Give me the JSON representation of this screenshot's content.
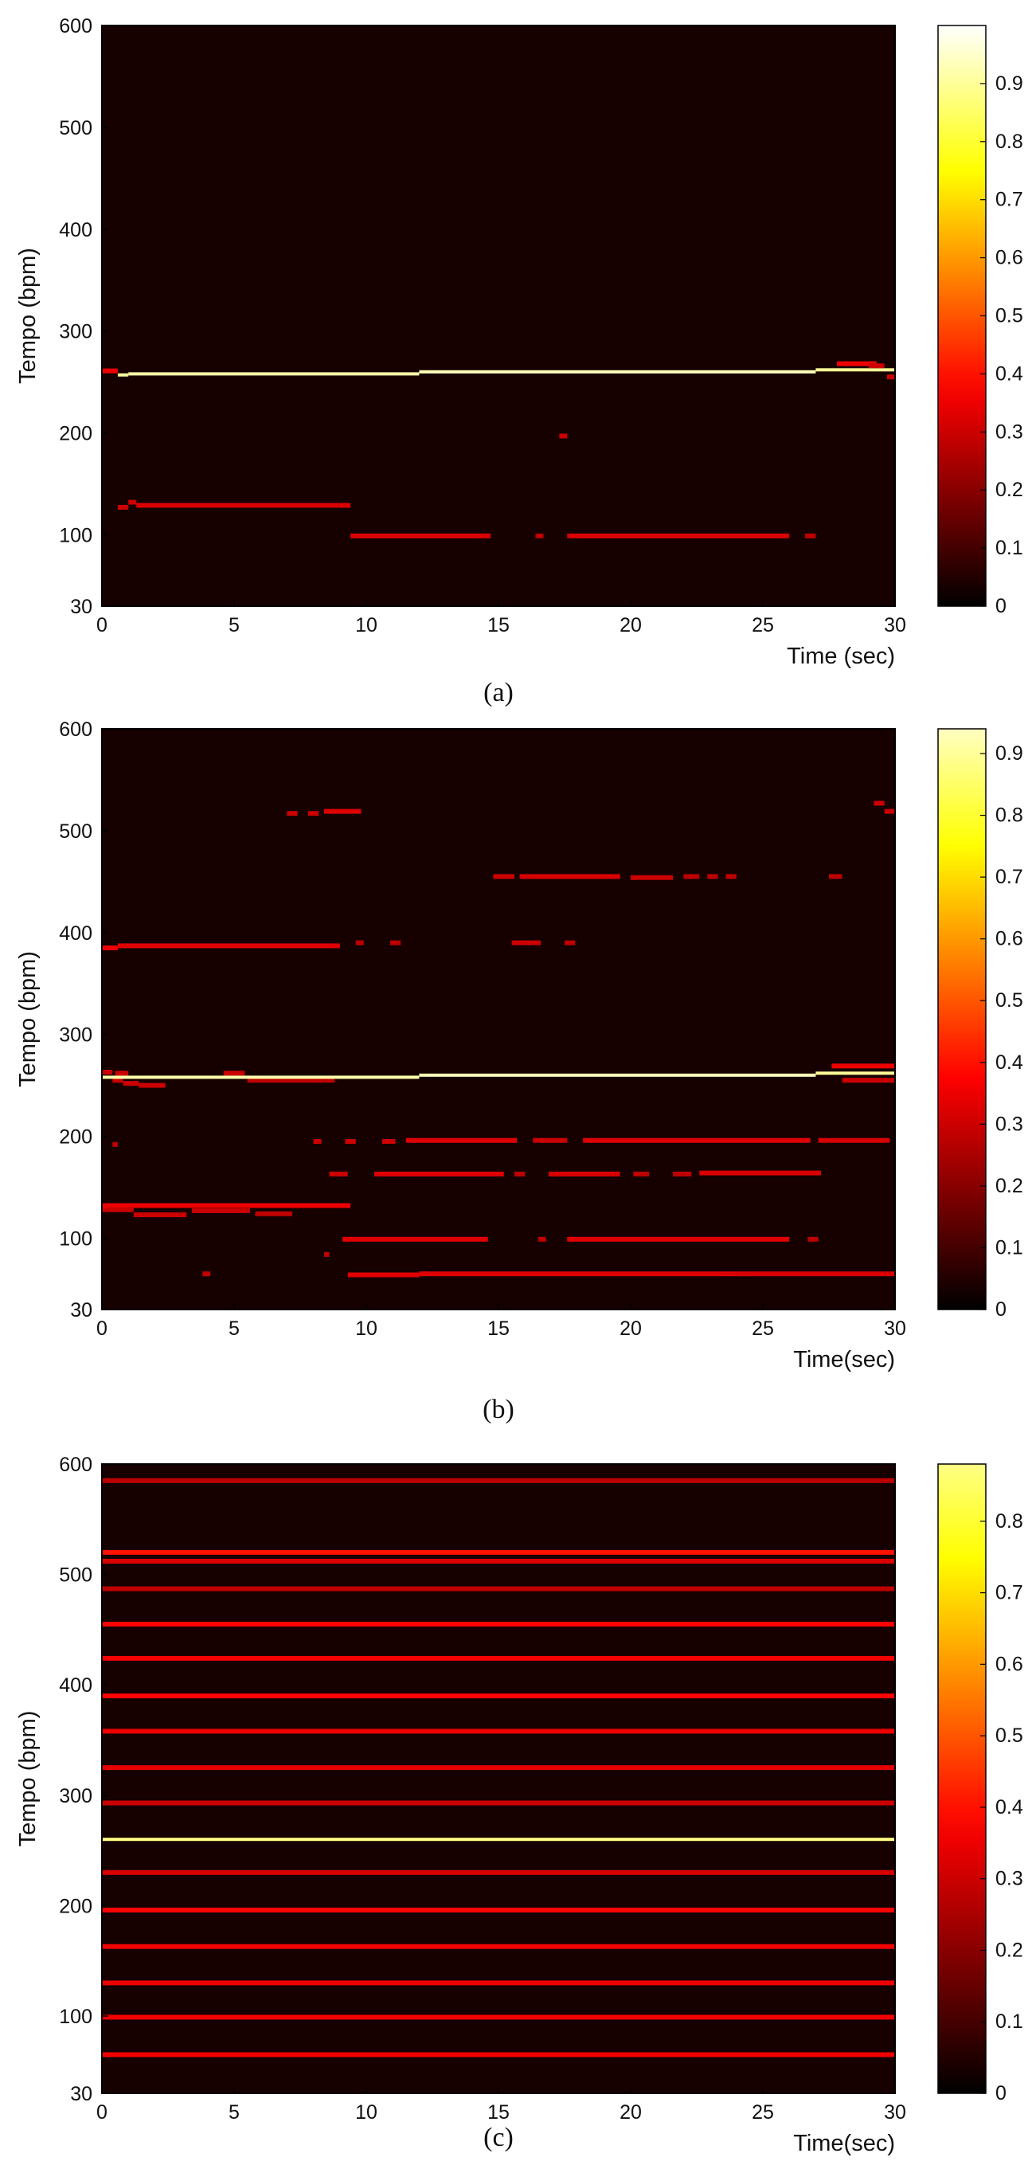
{
  "figure": {
    "panels": [
      {
        "caption": "(a)",
        "xlabel": "Time (sec)",
        "ylabel": "Tempo (bpm)"
      },
      {
        "caption": "(b)",
        "xlabel": "Time(sec)",
        "ylabel": "Tempo (bpm)"
      },
      {
        "caption": "(c)",
        "xlabel": "Time(sec)",
        "ylabel": "Tempo (bpm)"
      }
    ]
  },
  "chart_data": [
    {
      "type": "heatmap",
      "caption": "(a)",
      "title": "",
      "xlabel": "Time (sec)",
      "ylabel": "Tempo (bpm)",
      "xlim": [
        0,
        30
      ],
      "ylim": [
        30,
        600
      ],
      "xticks": [
        0,
        5,
        10,
        15,
        20,
        25,
        30
      ],
      "yticks": [
        30,
        100,
        200,
        300,
        400,
        500,
        600
      ],
      "colorbar": {
        "colormap": "hot",
        "min": 0,
        "max": 1.0,
        "ticks": [
          0,
          0.1,
          0.2,
          0.3,
          0.4,
          0.5,
          0.6,
          0.7,
          0.8,
          0.9
        ]
      },
      "background": "#160000",
      "tracks": [
        {
          "t0": 0,
          "t1": 0.6,
          "bpm": 261,
          "value": 0.35
        },
        {
          "t0": 0.6,
          "t1": 1.0,
          "bpm": 257,
          "value": 0.9
        },
        {
          "t0": 1.0,
          "t1": 12,
          "bpm": 258,
          "value": 0.92
        },
        {
          "t0": 12,
          "t1": 27,
          "bpm": 260,
          "value": 0.93
        },
        {
          "t0": 27,
          "t1": 30,
          "bpm": 262,
          "value": 0.9
        },
        {
          "t0": 27.8,
          "t1": 29.3,
          "bpm": 268,
          "value": 0.35
        },
        {
          "t0": 29.0,
          "t1": 29.6,
          "bpm": 266,
          "value": 0.3
        },
        {
          "t0": 29.7,
          "t1": 30,
          "bpm": 255,
          "value": 0.3
        },
        {
          "t0": 17.3,
          "t1": 17.6,
          "bpm": 197,
          "value": 0.3
        },
        {
          "t0": 0.6,
          "t1": 1.0,
          "bpm": 127,
          "value": 0.3
        },
        {
          "t0": 1.0,
          "t1": 1.3,
          "bpm": 132,
          "value": 0.3
        },
        {
          "t0": 1.3,
          "t1": 9.4,
          "bpm": 129,
          "value": 0.32
        },
        {
          "t0": 9.4,
          "t1": 14.7,
          "bpm": 99,
          "value": 0.32
        },
        {
          "t0": 16.4,
          "t1": 16.7,
          "bpm": 99,
          "value": 0.28
        },
        {
          "t0": 17.6,
          "t1": 26.0,
          "bpm": 99,
          "value": 0.32
        },
        {
          "t0": 26.6,
          "t1": 27.0,
          "bpm": 99,
          "value": 0.28
        }
      ]
    },
    {
      "type": "heatmap",
      "caption": "(b)",
      "title": "",
      "xlabel": "Time(sec)",
      "ylabel": "Tempo (bpm)",
      "xlim": [
        0,
        30
      ],
      "ylim": [
        30,
        600
      ],
      "xticks": [
        0,
        5,
        10,
        15,
        20,
        25,
        30
      ],
      "yticks": [
        30,
        100,
        200,
        300,
        400,
        500,
        600
      ],
      "colorbar": {
        "colormap": "hot",
        "min": 0,
        "max": 0.94,
        "ticks": [
          0,
          0.1,
          0.2,
          0.3,
          0.4,
          0.5,
          0.6,
          0.7,
          0.8,
          0.9
        ]
      },
      "background": "#160000",
      "tracks": [
        {
          "t0": 7.0,
          "t1": 7.4,
          "bpm": 517,
          "value": 0.3
        },
        {
          "t0": 7.8,
          "t1": 8.2,
          "bpm": 517,
          "value": 0.3
        },
        {
          "t0": 8.4,
          "t1": 9.8,
          "bpm": 519,
          "value": 0.33
        },
        {
          "t0": 29.2,
          "t1": 29.6,
          "bpm": 527,
          "value": 0.3
        },
        {
          "t0": 29.6,
          "t1": 30,
          "bpm": 519,
          "value": 0.3
        },
        {
          "t0": 14.8,
          "t1": 15.6,
          "bpm": 455,
          "value": 0.3
        },
        {
          "t0": 15.8,
          "t1": 19.6,
          "bpm": 455,
          "value": 0.32
        },
        {
          "t0": 20.0,
          "t1": 21.6,
          "bpm": 454,
          "value": 0.3
        },
        {
          "t0": 22.0,
          "t1": 22.6,
          "bpm": 455,
          "value": 0.28
        },
        {
          "t0": 22.9,
          "t1": 23.3,
          "bpm": 455,
          "value": 0.28
        },
        {
          "t0": 23.6,
          "t1": 24.0,
          "bpm": 455,
          "value": 0.28
        },
        {
          "t0": 27.5,
          "t1": 28.0,
          "bpm": 455,
          "value": 0.28
        },
        {
          "t0": 0,
          "t1": 0.6,
          "bpm": 385,
          "value": 0.35
        },
        {
          "t0": 0.6,
          "t1": 9.0,
          "bpm": 387,
          "value": 0.33
        },
        {
          "t0": 9.6,
          "t1": 9.9,
          "bpm": 390,
          "value": 0.28
        },
        {
          "t0": 10.9,
          "t1": 11.3,
          "bpm": 390,
          "value": 0.28
        },
        {
          "t0": 15.5,
          "t1": 16.6,
          "bpm": 390,
          "value": 0.3
        },
        {
          "t0": 17.5,
          "t1": 17.9,
          "bpm": 390,
          "value": 0.28
        },
        {
          "t0": 0,
          "t1": 0.4,
          "bpm": 263,
          "value": 0.3
        },
        {
          "t0": 0.5,
          "t1": 1.0,
          "bpm": 262,
          "value": 0.3
        },
        {
          "t0": 0.4,
          "t1": 0.8,
          "bpm": 255,
          "value": 0.3
        },
        {
          "t0": 0.8,
          "t1": 1.4,
          "bpm": 252,
          "value": 0.3
        },
        {
          "t0": 1.4,
          "t1": 2.4,
          "bpm": 250,
          "value": 0.3
        },
        {
          "t0": 4.6,
          "t1": 5.4,
          "bpm": 262,
          "value": 0.3
        },
        {
          "t0": 5.5,
          "t1": 8.8,
          "bpm": 255,
          "value": 0.28
        },
        {
          "t0": 0,
          "t1": 12,
          "bpm": 258,
          "value": 0.92
        },
        {
          "t0": 12,
          "t1": 27,
          "bpm": 260,
          "value": 0.93
        },
        {
          "t0": 27,
          "t1": 30,
          "bpm": 262,
          "value": 0.9
        },
        {
          "t0": 27.6,
          "t1": 30,
          "bpm": 269,
          "value": 0.35
        },
        {
          "t0": 28.0,
          "t1": 30,
          "bpm": 255,
          "value": 0.3
        },
        {
          "t0": 0.4,
          "t1": 0.6,
          "bpm": 192,
          "value": 0.28
        },
        {
          "t0": 8.0,
          "t1": 8.3,
          "bpm": 195,
          "value": 0.3
        },
        {
          "t0": 9.2,
          "t1": 9.6,
          "bpm": 195,
          "value": 0.3
        },
        {
          "t0": 10.6,
          "t1": 11.1,
          "bpm": 195,
          "value": 0.3
        },
        {
          "t0": 11.5,
          "t1": 15.7,
          "bpm": 196,
          "value": 0.33
        },
        {
          "t0": 16.3,
          "t1": 17.6,
          "bpm": 196,
          "value": 0.3
        },
        {
          "t0": 18.2,
          "t1": 26.8,
          "bpm": 196,
          "value": 0.33
        },
        {
          "t0": 27.1,
          "t1": 29.8,
          "bpm": 196,
          "value": 0.32
        },
        {
          "t0": 8.6,
          "t1": 9.3,
          "bpm": 163,
          "value": 0.3
        },
        {
          "t0": 10.3,
          "t1": 15.2,
          "bpm": 163,
          "value": 0.33
        },
        {
          "t0": 15.6,
          "t1": 16.0,
          "bpm": 163,
          "value": 0.28
        },
        {
          "t0": 16.9,
          "t1": 19.6,
          "bpm": 163,
          "value": 0.32
        },
        {
          "t0": 20.1,
          "t1": 20.7,
          "bpm": 163,
          "value": 0.28
        },
        {
          "t0": 21.6,
          "t1": 22.3,
          "bpm": 163,
          "value": 0.28
        },
        {
          "t0": 22.6,
          "t1": 27.2,
          "bpm": 164,
          "value": 0.32
        },
        {
          "t0": 0,
          "t1": 9.4,
          "bpm": 132,
          "value": 0.35
        },
        {
          "t0": 0,
          "t1": 1.2,
          "bpm": 128,
          "value": 0.3
        },
        {
          "t0": 1.2,
          "t1": 3.2,
          "bpm": 123,
          "value": 0.3
        },
        {
          "t0": 3.4,
          "t1": 5.6,
          "bpm": 127,
          "value": 0.3
        },
        {
          "t0": 5.8,
          "t1": 7.2,
          "bpm": 124,
          "value": 0.28
        },
        {
          "t0": 8.4,
          "t1": 8.6,
          "bpm": 84,
          "value": 0.28
        },
        {
          "t0": 9.1,
          "t1": 14.6,
          "bpm": 99,
          "value": 0.33
        },
        {
          "t0": 16.5,
          "t1": 16.8,
          "bpm": 99,
          "value": 0.28
        },
        {
          "t0": 17.6,
          "t1": 26.0,
          "bpm": 99,
          "value": 0.33
        },
        {
          "t0": 26.7,
          "t1": 27.1,
          "bpm": 99,
          "value": 0.28
        },
        {
          "t0": 3.8,
          "t1": 4.1,
          "bpm": 65,
          "value": 0.28
        },
        {
          "t0": 9.3,
          "t1": 12,
          "bpm": 64,
          "value": 0.33
        },
        {
          "t0": 12,
          "t1": 24,
          "bpm": 65,
          "value": 0.33
        },
        {
          "t0": 24,
          "t1": 30,
          "bpm": 65,
          "value": 0.32
        }
      ]
    },
    {
      "type": "heatmap",
      "caption": "(c)",
      "title": "",
      "xlabel": "Time(sec)",
      "ylabel": "Tempo (bpm)",
      "xlim": [
        0,
        30
      ],
      "ylim": [
        30,
        600
      ],
      "xticks": [
        0,
        5,
        10,
        15,
        20,
        25,
        30
      ],
      "yticks": [
        30,
        100,
        200,
        300,
        400,
        500,
        600
      ],
      "colorbar": {
        "colormap": "hot",
        "min": 0,
        "max": 0.88,
        "ticks": [
          0,
          0.1,
          0.2,
          0.3,
          0.4,
          0.5,
          0.6,
          0.7,
          0.8
        ]
      },
      "background": "#160000",
      "tracks": [
        {
          "t0": 0,
          "t1": 30,
          "bpm": 260,
          "value": 0.88
        },
        {
          "t0": 0,
          "t1": 30,
          "bpm": 520,
          "value": 0.4
        },
        {
          "t0": 0,
          "t1": 30,
          "bpm": 512,
          "value": 0.32
        },
        {
          "t0": 0,
          "t1": 30,
          "bpm": 487,
          "value": 0.28
        },
        {
          "t0": 0,
          "t1": 30,
          "bpm": 455,
          "value": 0.38
        },
        {
          "t0": 0,
          "t1": 30,
          "bpm": 424,
          "value": 0.36
        },
        {
          "t0": 0,
          "t1": 30,
          "bpm": 390,
          "value": 0.38
        },
        {
          "t0": 0,
          "t1": 30,
          "bpm": 358,
          "value": 0.35
        },
        {
          "t0": 0,
          "t1": 30,
          "bpm": 325,
          "value": 0.34
        },
        {
          "t0": 0,
          "t1": 30,
          "bpm": 293,
          "value": 0.3
        },
        {
          "t0": 0,
          "t1": 30,
          "bpm": 230,
          "value": 0.32
        },
        {
          "t0": 0,
          "t1": 30,
          "bpm": 196,
          "value": 0.38
        },
        {
          "t0": 0,
          "t1": 30,
          "bpm": 163,
          "value": 0.36
        },
        {
          "t0": 0,
          "t1": 30,
          "bpm": 130,
          "value": 0.35
        },
        {
          "t0": 0,
          "t1": 30,
          "bpm": 99,
          "value": 0.36
        },
        {
          "t0": 0,
          "t1": 30,
          "bpm": 65,
          "value": 0.36
        },
        {
          "t0": 0,
          "t1": 30,
          "bpm": 585,
          "value": 0.28
        }
      ]
    }
  ]
}
